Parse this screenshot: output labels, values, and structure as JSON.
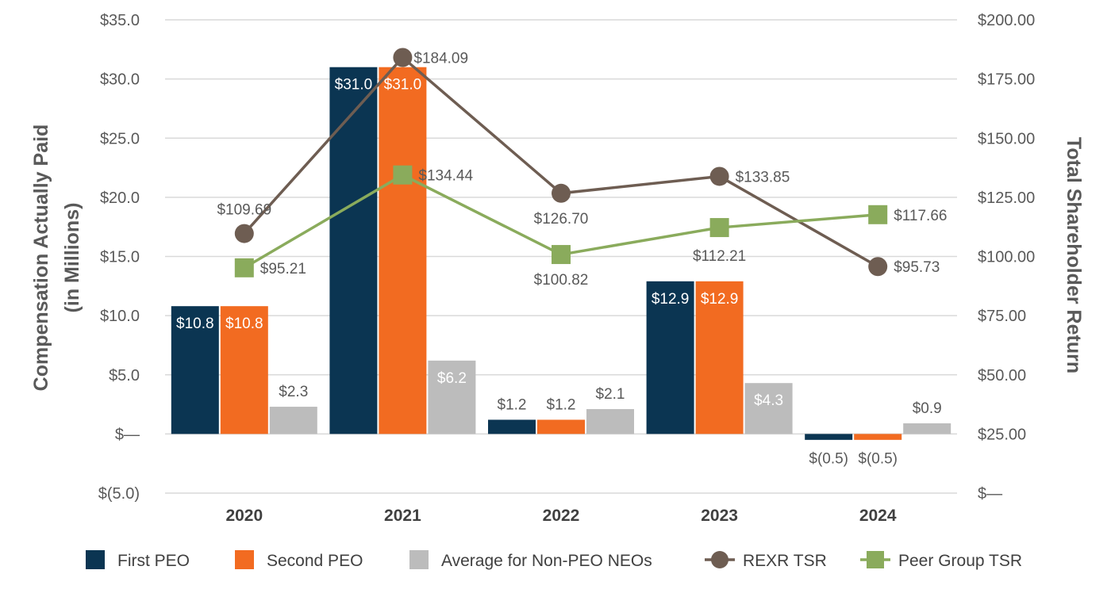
{
  "chart_data": {
    "type": "bar",
    "categories": [
      "2020",
      "2021",
      "2022",
      "2023",
      "2024"
    ],
    "left_axis": {
      "label_line1": "Compensation Actually Paid",
      "label_line2": "(in Millions)",
      "range": [
        -5,
        35
      ],
      "ticks": [
        -5,
        0,
        5,
        10,
        15,
        20,
        25,
        30,
        35
      ],
      "tick_labels": [
        "$(5.0)",
        "$—",
        "$5.0",
        "$10.0",
        "$15.0",
        "$20.0",
        "$25.0",
        "$30.0",
        "$35.0"
      ]
    },
    "right_axis": {
      "label": "Total Shareholder Return",
      "range": [
        0,
        200
      ],
      "ticks": [
        0,
        25,
        50,
        75,
        100,
        125,
        150,
        175,
        200
      ],
      "tick_labels": [
        "$—",
        "$25.00",
        "$50.00",
        "$75.00",
        "$100.00",
        "$125.00",
        "$150.00",
        "$175.00",
        "$200.00"
      ]
    },
    "bar_series": [
      {
        "name": "First PEO",
        "color": "#0b3552",
        "values": [
          10.8,
          31.0,
          1.2,
          12.9,
          -0.5
        ],
        "labels": [
          "$10.8",
          "$31.0",
          "$1.2",
          "$12.9",
          "$(0.5)"
        ]
      },
      {
        "name": "Second PEO",
        "color": "#f26b21",
        "values": [
          10.8,
          31.0,
          1.2,
          12.9,
          -0.5
        ],
        "labels": [
          "$10.8",
          "$31.0",
          "$1.2",
          "$12.9",
          "$(0.5)"
        ]
      },
      {
        "name": "Average for Non-PEO NEOs",
        "color": "#bcbcbc",
        "values": [
          2.3,
          6.2,
          2.1,
          4.3,
          0.9
        ],
        "labels": [
          "$2.3",
          "$6.2",
          "$2.1",
          "$4.3",
          "$0.9"
        ]
      }
    ],
    "line_series": [
      {
        "name": "REXR TSR",
        "color": "#6e5d52",
        "marker": "circle",
        "values": [
          109.69,
          184.09,
          126.7,
          133.85,
          95.73
        ],
        "labels": [
          "$109.69",
          "$184.09",
          "$126.70",
          "$133.85",
          "$95.73"
        ]
      },
      {
        "name": "Peer Group TSR",
        "color": "#8aab5c",
        "marker": "square",
        "values": [
          95.21,
          134.44,
          100.82,
          112.21,
          117.66
        ],
        "labels": [
          "$95.21",
          "$134.44",
          "$100.82",
          "$112.21",
          "$117.66"
        ]
      }
    ],
    "gridlines": true,
    "legend_position": "bottom"
  }
}
